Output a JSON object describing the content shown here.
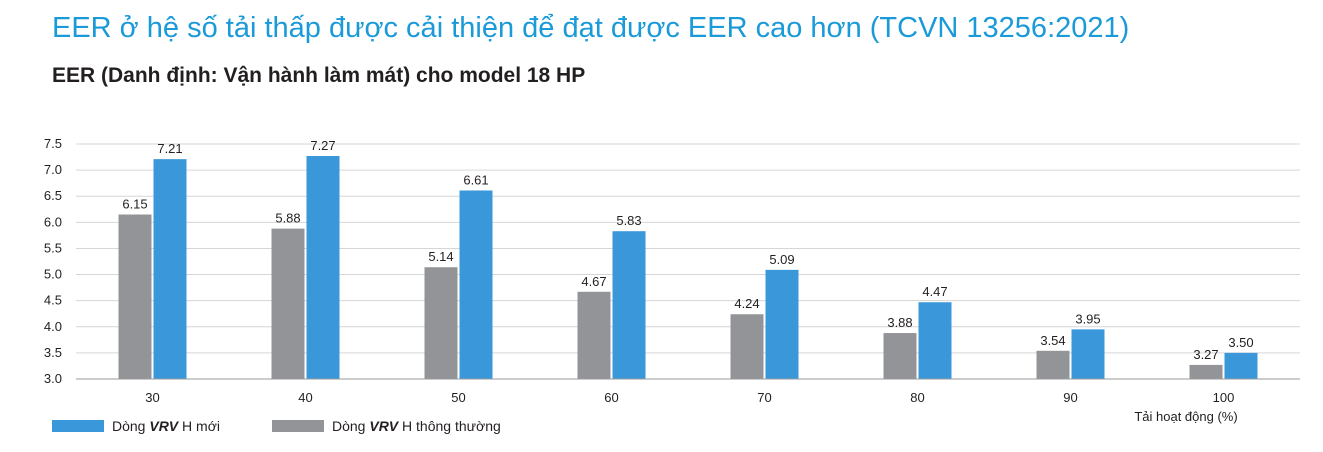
{
  "title": "EER ở hệ số tải thấp được cải thiện để đạt được EER cao hơn (TCVN 13256:2021)",
  "subtitle": "EER (Danh định: Vận hành làm mát) cho model 18 HP",
  "legend": {
    "new_prefix": "Dòng ",
    "new_brand": "VRV",
    "new_suffix": " H mới",
    "old_prefix": "Dòng ",
    "old_brand": "VRV",
    "old_suffix": " H thông thường"
  },
  "chart_data": {
    "type": "bar",
    "title": "EER (Danh định: Vận hành làm mát) cho model 18 HP",
    "xlabel": "Tải hoạt động (%)",
    "ylabel": "",
    "categories": [
      "30",
      "40",
      "50",
      "60",
      "70",
      "80",
      "90",
      "100"
    ],
    "series": [
      {
        "name": "Dòng VRV H thông thường",
        "color": "#929497",
        "values": [
          6.15,
          5.88,
          5.14,
          4.67,
          4.24,
          3.88,
          3.54,
          3.27
        ]
      },
      {
        "name": "Dòng VRV H mới",
        "color": "#3a97d9",
        "values": [
          7.21,
          7.27,
          6.61,
          5.83,
          5.09,
          4.47,
          3.95,
          3.5
        ]
      }
    ],
    "ylim": [
      3.0,
      7.5
    ],
    "yticks": [
      "3.0",
      "3.5",
      "4.0",
      "4.5",
      "5.0",
      "5.5",
      "6.0",
      "6.5",
      "7.0",
      "7.5"
    ],
    "grid": true,
    "legend_position": "bottom-left"
  }
}
